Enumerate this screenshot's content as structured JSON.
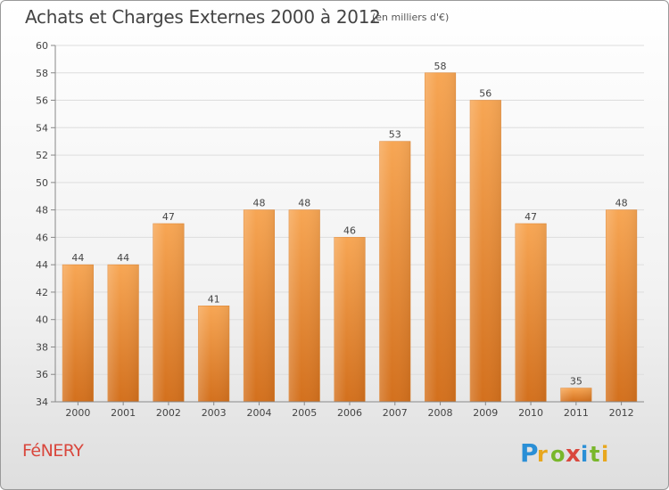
{
  "header": {
    "title": "Achats et Charges Externes 2000 à 2012",
    "subtitle": "(en milliers d'€)"
  },
  "footer": {
    "town": "FéNERY",
    "logo_text": "Proxiti"
  },
  "colors": {
    "bar_top": "#f7a654",
    "bar_bottom": "#d3701d",
    "town_text": "#d9473d",
    "grid": "#dddddd"
  },
  "chart_data": {
    "type": "bar",
    "title": "Achats et Charges Externes 2000 à 2012",
    "subtitle": "(en milliers d'€)",
    "xlabel": "",
    "ylabel": "",
    "categories": [
      "2000",
      "2001",
      "2002",
      "2003",
      "2004",
      "2005",
      "2006",
      "2007",
      "2008",
      "2009",
      "2010",
      "2011",
      "2012"
    ],
    "values": [
      44,
      44,
      47,
      41,
      48,
      48,
      46,
      53,
      58,
      56,
      47,
      35,
      48
    ],
    "ylim": [
      34,
      60
    ],
    "yticks": [
      34,
      36,
      38,
      40,
      42,
      44,
      46,
      48,
      50,
      52,
      54,
      56,
      58,
      60
    ],
    "grid": true,
    "data_labels": true
  }
}
